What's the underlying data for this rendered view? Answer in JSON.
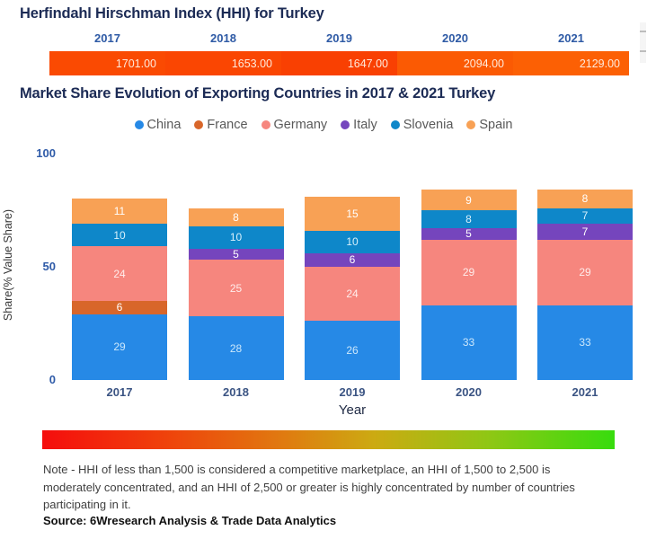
{
  "hhi": {
    "title": "Herfindahl Hirschman Index (HHI) for Turkey",
    "years": [
      "2017",
      "2018",
      "2019",
      "2020",
      "2021"
    ],
    "values": [
      "1701.00",
      "1653.00",
      "1647.00",
      "2094.00",
      "2129.00"
    ],
    "cell_colors": [
      "#fa4a02",
      "#fa4602",
      "#f94002",
      "#fb5a03",
      "#fc6004"
    ],
    "scale_colors": {
      "low": "#f50d0d",
      "high": "#37dc0e"
    }
  },
  "market": {
    "title": "Market Share Evolution of Exporting Countries in 2017 & 2021 Turkey"
  },
  "chart_data": {
    "type": "bar",
    "stacked": true,
    "title": "Market Share Evolution of Exporting Countries in 2017 & 2021 Turkey",
    "categories": [
      "2017",
      "2018",
      "2019",
      "2020",
      "2021"
    ],
    "series": [
      {
        "name": "China",
        "color": "#2689e6",
        "label_color": "#cbe7fb",
        "values": [
          29,
          28,
          26,
          33,
          33
        ]
      },
      {
        "name": "France",
        "color": "#d8662a",
        "label_color": "#ffffff",
        "values": [
          6,
          0,
          0,
          0,
          0
        ]
      },
      {
        "name": "Germany",
        "color": "#f6867e",
        "label_color": "#ffeceb",
        "values": [
          24,
          25,
          24,
          29,
          29
        ]
      },
      {
        "name": "Italy",
        "color": "#7545bd",
        "label_color": "#ffffff",
        "values": [
          0,
          5,
          6,
          5,
          7
        ]
      },
      {
        "name": "Slovenia",
        "color": "#0e87c9",
        "label_color": "#d8f0fb",
        "values": [
          10,
          10,
          10,
          8,
          7
        ]
      },
      {
        "name": "Spain",
        "color": "#f8a155",
        "label_color": "#ffffff",
        "values": [
          11,
          8,
          15,
          9,
          8
        ]
      }
    ],
    "xlabel": "Year",
    "ylabel": "Share(% Value Share)",
    "yticks": [
      0,
      50,
      100
    ],
    "ylim": [
      0,
      100
    ],
    "grid": false,
    "legend_position": "top"
  },
  "footer": {
    "note": "Note - HHI of less than 1,500 is considered a competitive marketplace, an HHI of 1,500 to 2,500 is moderately concentrated, and an HHI of 2,500 or greater is highly concentrated by number of countries participating in it.",
    "source": "Source: 6Wresearch Analysis & Trade Data Analytics"
  }
}
